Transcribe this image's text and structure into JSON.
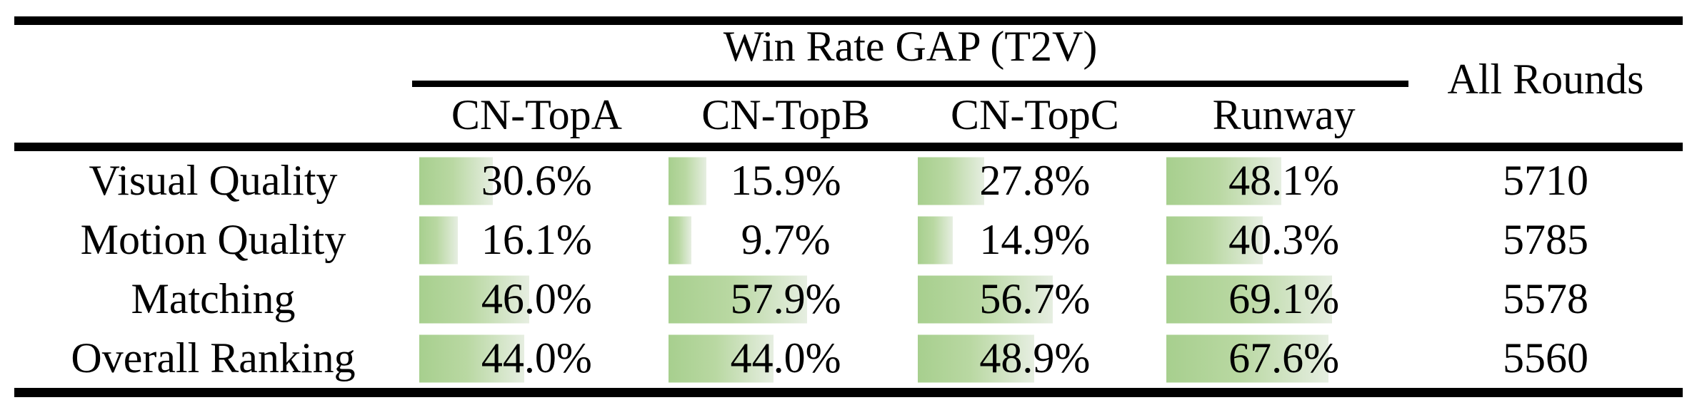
{
  "table": {
    "group_header": "Win Rate GAP (T2V)",
    "all_rounds_header": "All Rounds",
    "columns": [
      "CN-TopA",
      "CN-TopB",
      "CN-TopC",
      "Runway"
    ],
    "rows": [
      {
        "label": "Visual Quality",
        "cells": [
          {
            "text": "30.6%",
            "pct": 30.6
          },
          {
            "text": "15.9%",
            "pct": 15.9
          },
          {
            "text": "27.8%",
            "pct": 27.8
          },
          {
            "text": "48.1%",
            "pct": 48.1
          }
        ],
        "all_rounds": "5710"
      },
      {
        "label": "Motion Quality",
        "cells": [
          {
            "text": "16.1%",
            "pct": 16.1
          },
          {
            "text": "9.7%",
            "pct": 9.7
          },
          {
            "text": "14.9%",
            "pct": 14.9
          },
          {
            "text": "40.3%",
            "pct": 40.3
          }
        ],
        "all_rounds": "5785"
      },
      {
        "label": "Matching",
        "cells": [
          {
            "text": "46.0%",
            "pct": 46.0
          },
          {
            "text": "57.9%",
            "pct": 57.9
          },
          {
            "text": "56.7%",
            "pct": 56.7
          },
          {
            "text": "69.1%",
            "pct": 69.1
          }
        ],
        "all_rounds": "5578"
      },
      {
        "label": "Overall Ranking",
        "cells": [
          {
            "text": "44.0%",
            "pct": 44.0
          },
          {
            "text": "44.0%",
            "pct": 44.0
          },
          {
            "text": "48.9%",
            "pct": 48.9
          },
          {
            "text": "67.6%",
            "pct": 67.6
          }
        ],
        "all_rounds": "5560"
      }
    ]
  },
  "chart_data": {
    "type": "table",
    "title": "Win Rate GAP (T2V)",
    "columns": [
      "CN-TopA",
      "CN-TopB",
      "CN-TopC",
      "Runway",
      "All Rounds"
    ],
    "row_labels": [
      "Visual Quality",
      "Motion Quality",
      "Matching",
      "Overall Ranking"
    ],
    "series": [
      {
        "name": "CN-TopA",
        "values": [
          30.6,
          16.1,
          46.0,
          44.0
        ]
      },
      {
        "name": "CN-TopB",
        "values": [
          15.9,
          9.7,
          57.9,
          44.0
        ]
      },
      {
        "name": "CN-TopC",
        "values": [
          27.8,
          14.9,
          56.7,
          48.9
        ]
      },
      {
        "name": "Runway",
        "values": [
          48.1,
          40.3,
          69.1,
          67.6
        ]
      },
      {
        "name": "All Rounds",
        "values": [
          5710,
          5785,
          5578,
          5560
        ]
      }
    ],
    "value_unit": "%",
    "bar_scale_max": 100,
    "notes": "Green gradient data bars behind percentages, bar width proportional to value"
  },
  "colors": {
    "background": "#ffffff",
    "text": "#000000",
    "rule": "#000000",
    "bar_gradient_start": "#a7cf8e",
    "bar_gradient_end": "#e6eee1"
  }
}
